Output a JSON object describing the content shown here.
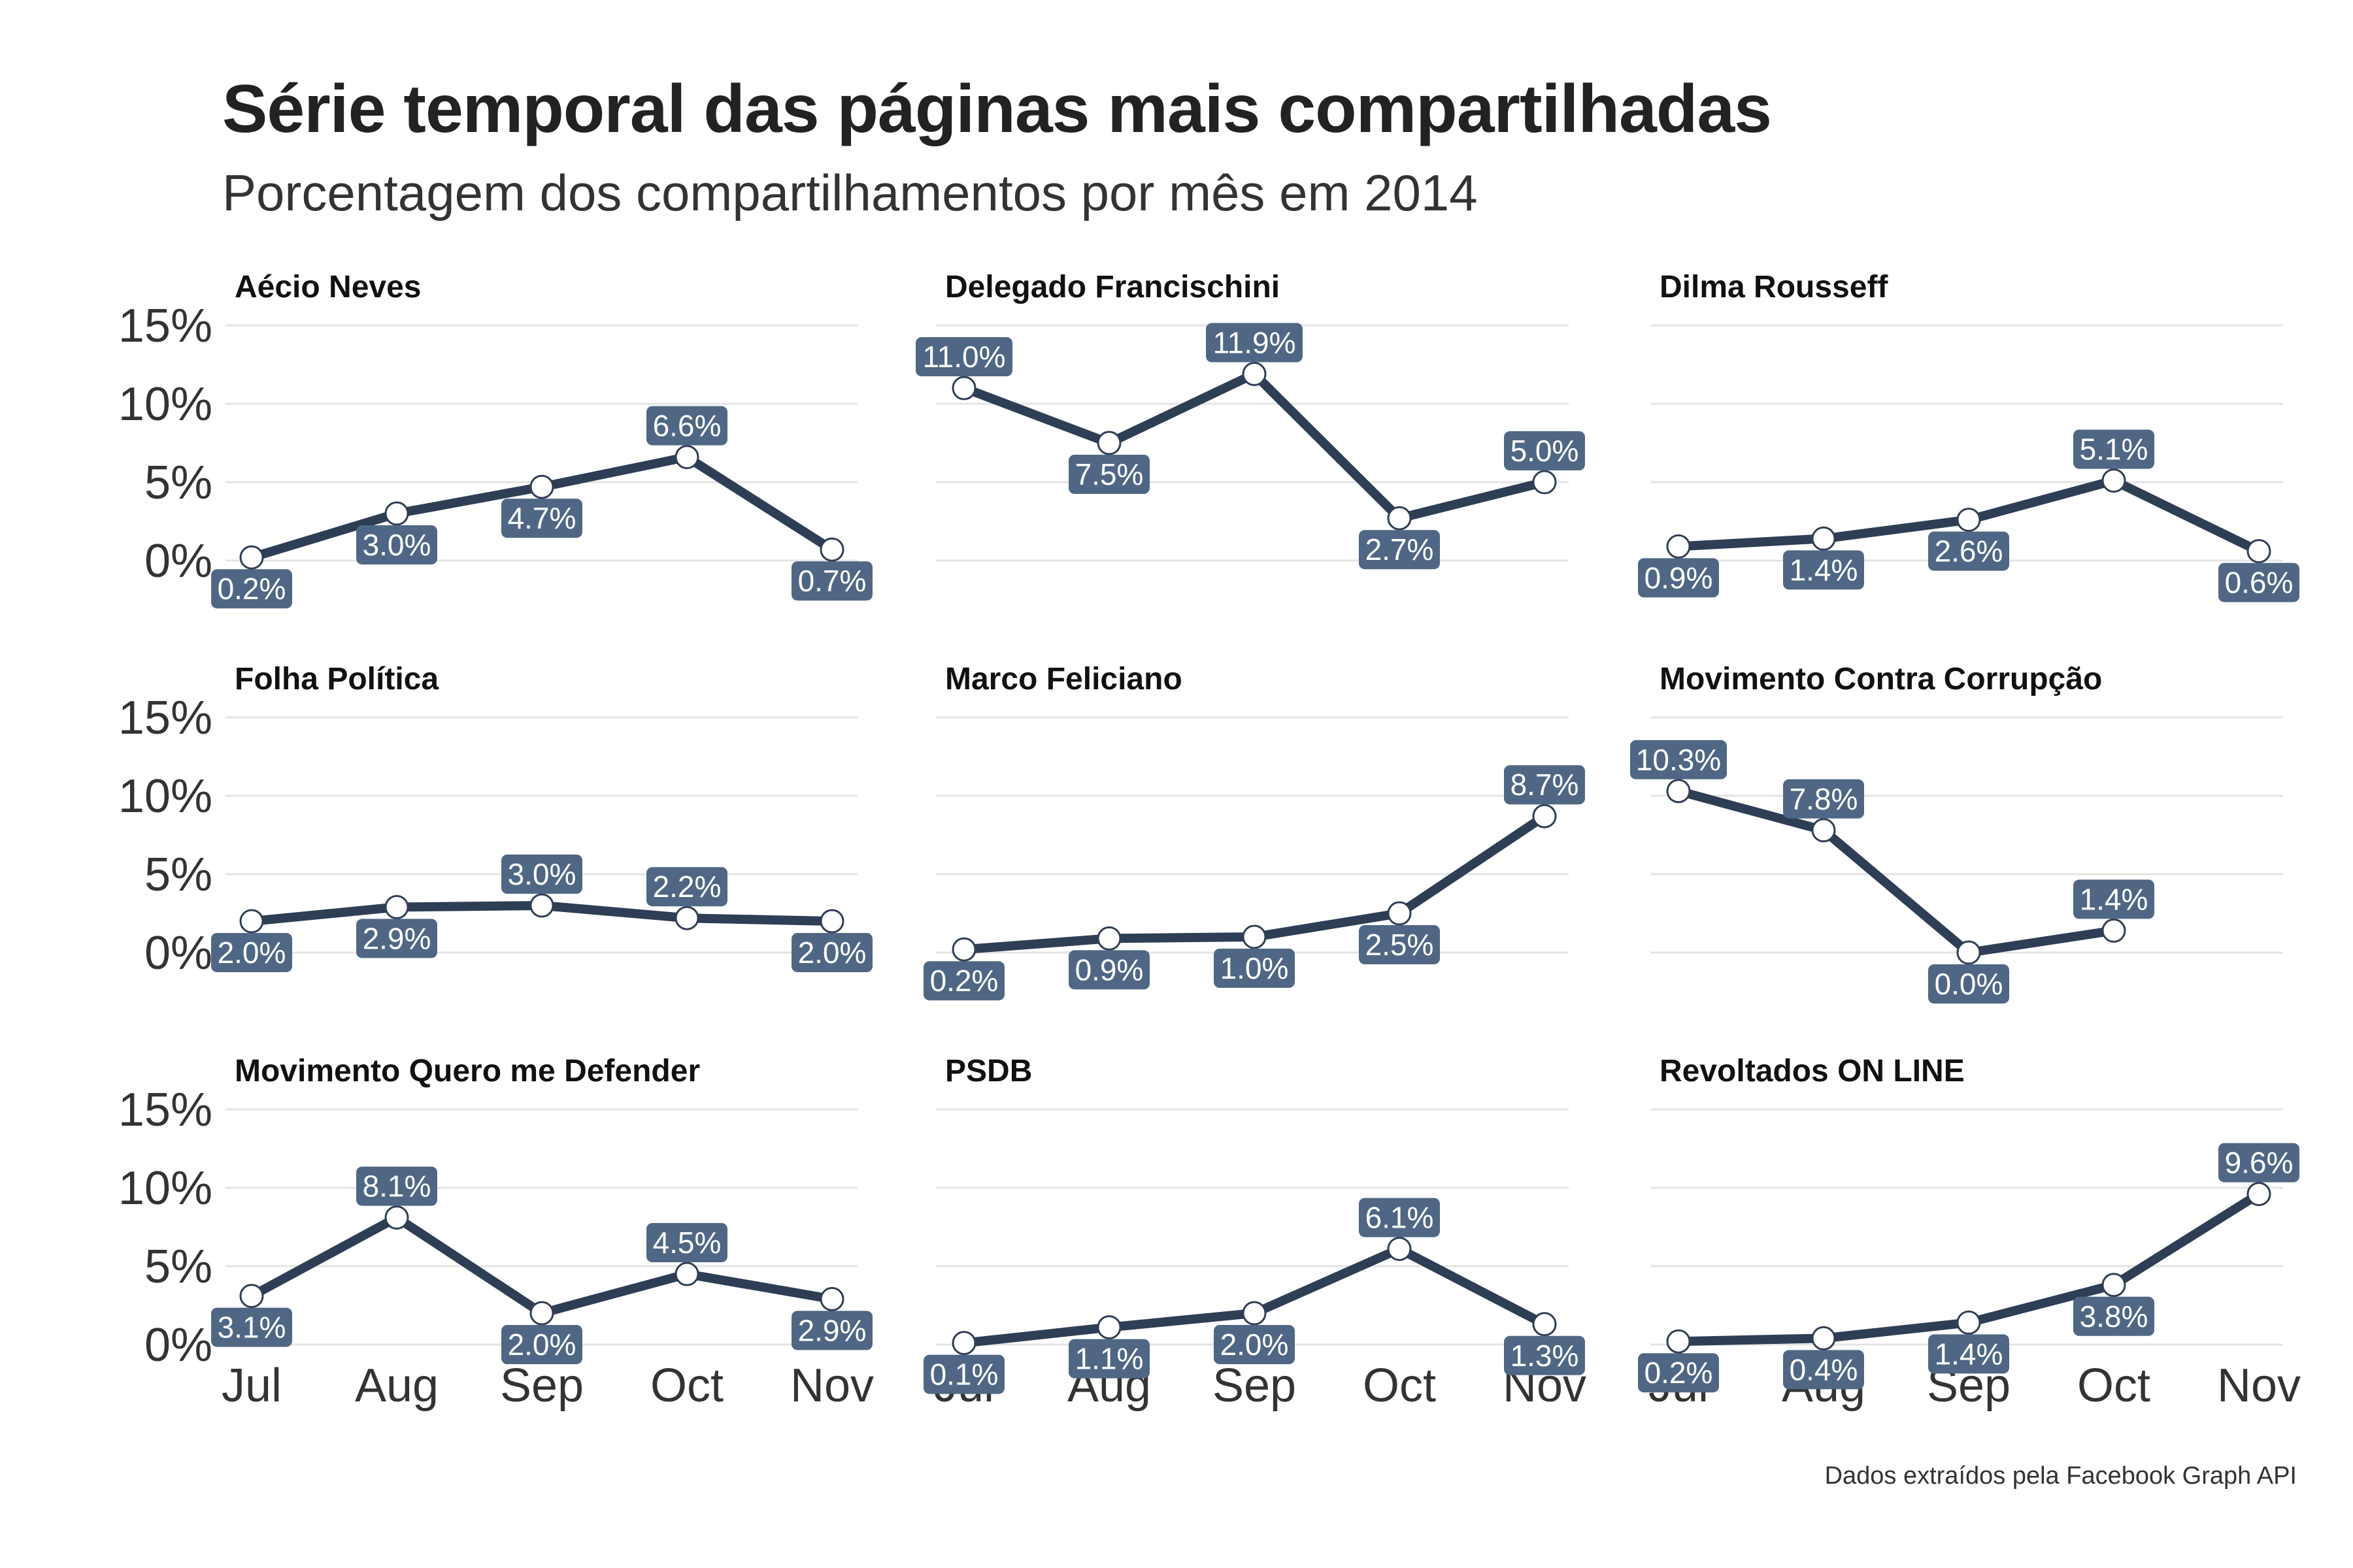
{
  "header": {
    "title": "Série temporal das páginas mais compartilhadas",
    "subtitle": "Porcentagem dos compartilhamentos por mês em 2014"
  },
  "caption": "Dados extraídos pela Facebook Graph API",
  "colors": {
    "line": "#2e3e55",
    "label_bg": "#4f6784",
    "marker_fill": "#ffffff",
    "grid": "#e4e4e4"
  },
  "chart_data": {
    "type": "line",
    "facets": "3x3",
    "x": [
      "Jul",
      "Aug",
      "Sep",
      "Oct",
      "Nov"
    ],
    "ylim": [
      0,
      15
    ],
    "yticks": [
      "0%",
      "5%",
      "10%",
      "15%"
    ],
    "grid": true,
    "panels": [
      {
        "name": "Aécio Neves",
        "values": [
          0.2,
          3.0,
          4.7,
          6.6,
          0.7
        ],
        "labels": [
          "0.2%",
          "3.0%",
          "4.7%",
          "6.6%",
          "0.7%"
        ]
      },
      {
        "name": "Delegado Francischini",
        "values": [
          11.0,
          7.5,
          11.9,
          2.7,
          5.0
        ],
        "labels": [
          "11.0%",
          "7.5%",
          "11.9%",
          "2.7%",
          "5.0%"
        ]
      },
      {
        "name": "Dilma Rousseff",
        "values": [
          0.9,
          1.4,
          2.6,
          5.1,
          0.6
        ],
        "labels": [
          "0.9%",
          "1.4%",
          "2.6%",
          "5.1%",
          "0.6%"
        ]
      },
      {
        "name": "Folha Política",
        "values": [
          2.0,
          2.9,
          3.0,
          2.2,
          2.0
        ],
        "labels": [
          "2.0%",
          "2.9%",
          "3.0%",
          "2.2%",
          "2.0%"
        ]
      },
      {
        "name": "Marco Feliciano",
        "values": [
          0.2,
          0.9,
          1.0,
          2.5,
          8.7
        ],
        "labels": [
          "0.2%",
          "0.9%",
          "1.0%",
          "2.5%",
          "8.7%"
        ]
      },
      {
        "name": "Movimento Contra Corrupção",
        "values": [
          10.3,
          7.8,
          0.0,
          1.4
        ],
        "labels": [
          "10.3%",
          "7.8%",
          "0.0%",
          "1.4%"
        ]
      },
      {
        "name": "Movimento Quero me Defender",
        "values": [
          3.1,
          8.1,
          2.0,
          4.5,
          2.9
        ],
        "labels": [
          "3.1%",
          "8.1%",
          "2.0%",
          "4.5%",
          "2.9%"
        ]
      },
      {
        "name": "PSDB",
        "values": [
          0.1,
          1.1,
          2.0,
          6.1,
          1.3
        ],
        "labels": [
          "0.1%",
          "1.1%",
          "2.0%",
          "6.1%",
          "1.3%"
        ]
      },
      {
        "name": "Revoltados ON LINE",
        "values": [
          0.2,
          0.4,
          1.4,
          3.8,
          9.6
        ],
        "labels": [
          "0.2%",
          "0.4%",
          "1.4%",
          "3.8%",
          "9.6%"
        ]
      }
    ]
  }
}
